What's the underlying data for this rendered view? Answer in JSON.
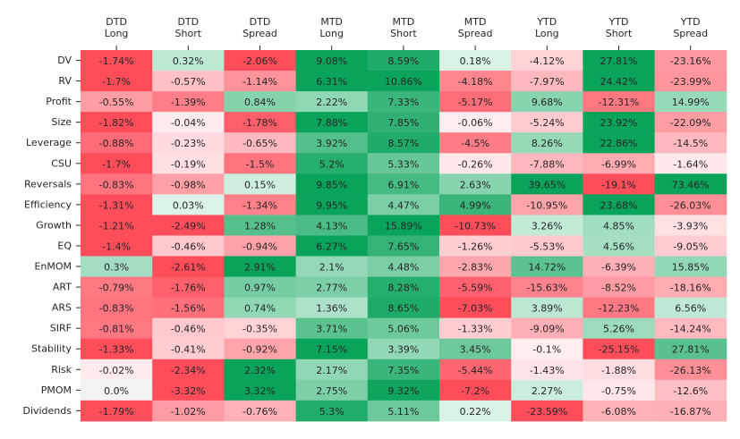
{
  "chart_data": {
    "type": "heatmap",
    "title": "",
    "xlabel": "",
    "ylabel": "",
    "columns": [
      [
        "DTD",
        "Long"
      ],
      [
        "DTD",
        "Short"
      ],
      [
        "DTD",
        "Spread"
      ],
      [
        "MTD",
        "Long"
      ],
      [
        "MTD",
        "Short"
      ],
      [
        "MTD",
        "Spread"
      ],
      [
        "YTD",
        "Long"
      ],
      [
        "YTD",
        "Short"
      ],
      [
        "YTD",
        "Spread"
      ]
    ],
    "rows": [
      "DV",
      "RV",
      "Profit",
      "Size",
      "Leverage",
      "CSU",
      "Reversals",
      "Efficiency",
      "Growth",
      "EQ",
      "EnMOM",
      "ART",
      "ARS",
      "SIRF",
      "Stability",
      "Risk",
      "PMOM",
      "Dividends"
    ],
    "labels": [
      [
        "-1.74%",
        "0.32%",
        "-2.06%",
        "9.08%",
        "8.59%",
        "0.18%",
        "-4.12%",
        "27.81%",
        "-23.16%"
      ],
      [
        "-1.7%",
        "-0.57%",
        "-1.14%",
        "6.31%",
        "10.86%",
        "-4.18%",
        "-7.97%",
        "24.42%",
        "-23.99%"
      ],
      [
        "-0.55%",
        "-1.39%",
        "0.84%",
        "2.22%",
        "7.33%",
        "-5.17%",
        "9.68%",
        "-12.31%",
        "14.99%"
      ],
      [
        "-1.82%",
        "-0.04%",
        "-1.78%",
        "7.88%",
        "7.85%",
        "-0.06%",
        "-5.24%",
        "23.92%",
        "-22.09%"
      ],
      [
        "-0.88%",
        "-0.23%",
        "-0.65%",
        "3.92%",
        "8.57%",
        "-4.5%",
        "8.26%",
        "22.86%",
        "-14.5%"
      ],
      [
        "-1.7%",
        "-0.19%",
        "-1.5%",
        "5.2%",
        "5.33%",
        "-0.26%",
        "-7.88%",
        "-6.99%",
        "-1.64%"
      ],
      [
        "-0.83%",
        "-0.98%",
        "0.15%",
        "9.85%",
        "6.91%",
        "2.63%",
        "39.65%",
        "-19.1%",
        "73.46%"
      ],
      [
        "-1.31%",
        "0.03%",
        "-1.34%",
        "9.95%",
        "4.47%",
        "4.99%",
        "-10.95%",
        "23.68%",
        "-26.03%"
      ],
      [
        "-1.21%",
        "-2.49%",
        "1.28%",
        "4.13%",
        "15.89%",
        "-10.73%",
        "3.26%",
        "4.85%",
        "-3.93%"
      ],
      [
        "-1.4%",
        "-0.46%",
        "-0.94%",
        "6.27%",
        "7.65%",
        "-1.26%",
        "-5.53%",
        "4.56%",
        "-9.05%"
      ],
      [
        "0.3%",
        "-2.61%",
        "2.91%",
        "2.1%",
        "4.48%",
        "-2.83%",
        "14.72%",
        "-6.39%",
        "15.85%"
      ],
      [
        "-0.79%",
        "-1.76%",
        "0.97%",
        "2.77%",
        "8.28%",
        "-5.59%",
        "-15.63%",
        "-8.52%",
        "-18.16%"
      ],
      [
        "-0.83%",
        "-1.56%",
        "0.74%",
        "1.36%",
        "8.65%",
        "-7.03%",
        "3.89%",
        "-12.23%",
        "6.56%"
      ],
      [
        "-0.81%",
        "-0.46%",
        "-0.35%",
        "3.71%",
        "5.06%",
        "-1.33%",
        "-9.09%",
        "5.26%",
        "-14.24%"
      ],
      [
        "-1.33%",
        "-0.41%",
        "-0.92%",
        "7.15%",
        "3.39%",
        "3.45%",
        "-0.1%",
        "-25.15%",
        "27.81%"
      ],
      [
        "-0.02%",
        "-2.34%",
        "2.32%",
        "2.17%",
        "7.35%",
        "-5.44%",
        "-1.43%",
        "-1.88%",
        "-26.13%"
      ],
      [
        "0.0%",
        "-3.32%",
        "3.32%",
        "2.75%",
        "9.32%",
        "-7.2%",
        "2.27%",
        "-0.75%",
        "-12.6%"
      ],
      [
        "-1.79%",
        "-1.02%",
        "-0.76%",
        "5.3%",
        "5.11%",
        "0.22%",
        "-23.59%",
        "-6.08%",
        "-16.87%"
      ]
    ],
    "color_scale": {
      "negative": "#ff4d5a",
      "zero": "#f2f2f2",
      "positive": "#0aa35a",
      "positive_light": "#dff5e9"
    },
    "grid": false,
    "legend": "none"
  }
}
